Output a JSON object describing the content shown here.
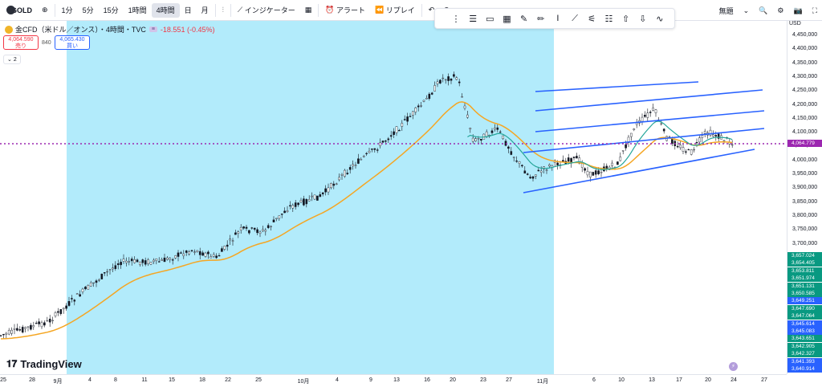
{
  "topbar": {
    "symbol": "GOLD",
    "add_icon": "plus-circle-icon",
    "intervals": [
      "1分",
      "5分",
      "15分",
      "1時間",
      "4時間",
      "日",
      "月"
    ],
    "active_interval": "4時間",
    "indicators_label": "インジケーター",
    "alert_label": "アラート",
    "replay_label": "リプレイ",
    "layout_label": "無題"
  },
  "legend": {
    "title": "金CFD（米ドル／オンス）・4時間・TVC",
    "change": "-18.551 (-0.45%)",
    "sell_price": "4,064.590",
    "sell_label": "売り",
    "buy_price": "4,065.430",
    "buy_label": "買い",
    "spread": "840",
    "indicator_count": "2"
  },
  "axis": {
    "currency": "USD",
    "y_ticks": [
      "4,450,000",
      "4,400,000",
      "4,350,000",
      "4,300,000",
      "4,250,000",
      "4,200,000",
      "4,150,000",
      "4,100,000",
      "4,050,000",
      "4,000,000",
      "3,950,000",
      "3,900,000",
      "3,850,000",
      "3,800,000",
      "3,750,000",
      "3,700,000"
    ],
    "current_price": "4,064.779",
    "stack_labels": [
      "3,657.024",
      "3,654.405",
      "3,653.811",
      "3,651.974",
      "3,651.131",
      "3,650.585",
      "3,649.251",
      "3,647.690",
      "3,647.064",
      "3,645.614",
      "3,645.083",
      "3,643.651",
      "3,642.905",
      "3,642.327",
      "3,641.393",
      "3,640.914"
    ],
    "x_ticks": [
      "25",
      "28",
      "9月",
      "4",
      "8",
      "11",
      "15",
      "18",
      "22",
      "25",
      "10月",
      "4",
      "9",
      "13",
      "16",
      "20",
      "23",
      "27",
      "11月",
      "6",
      "10",
      "13",
      "17",
      "20",
      "24",
      "27"
    ]
  },
  "branding": {
    "logo_text": "TradingView"
  },
  "colors": {
    "up": "#089981",
    "down": "#f23645",
    "ema": "#f5a623",
    "channel": "#2962ff",
    "highlight": "#b2ebfb",
    "price_line": "#9c27b0"
  }
}
